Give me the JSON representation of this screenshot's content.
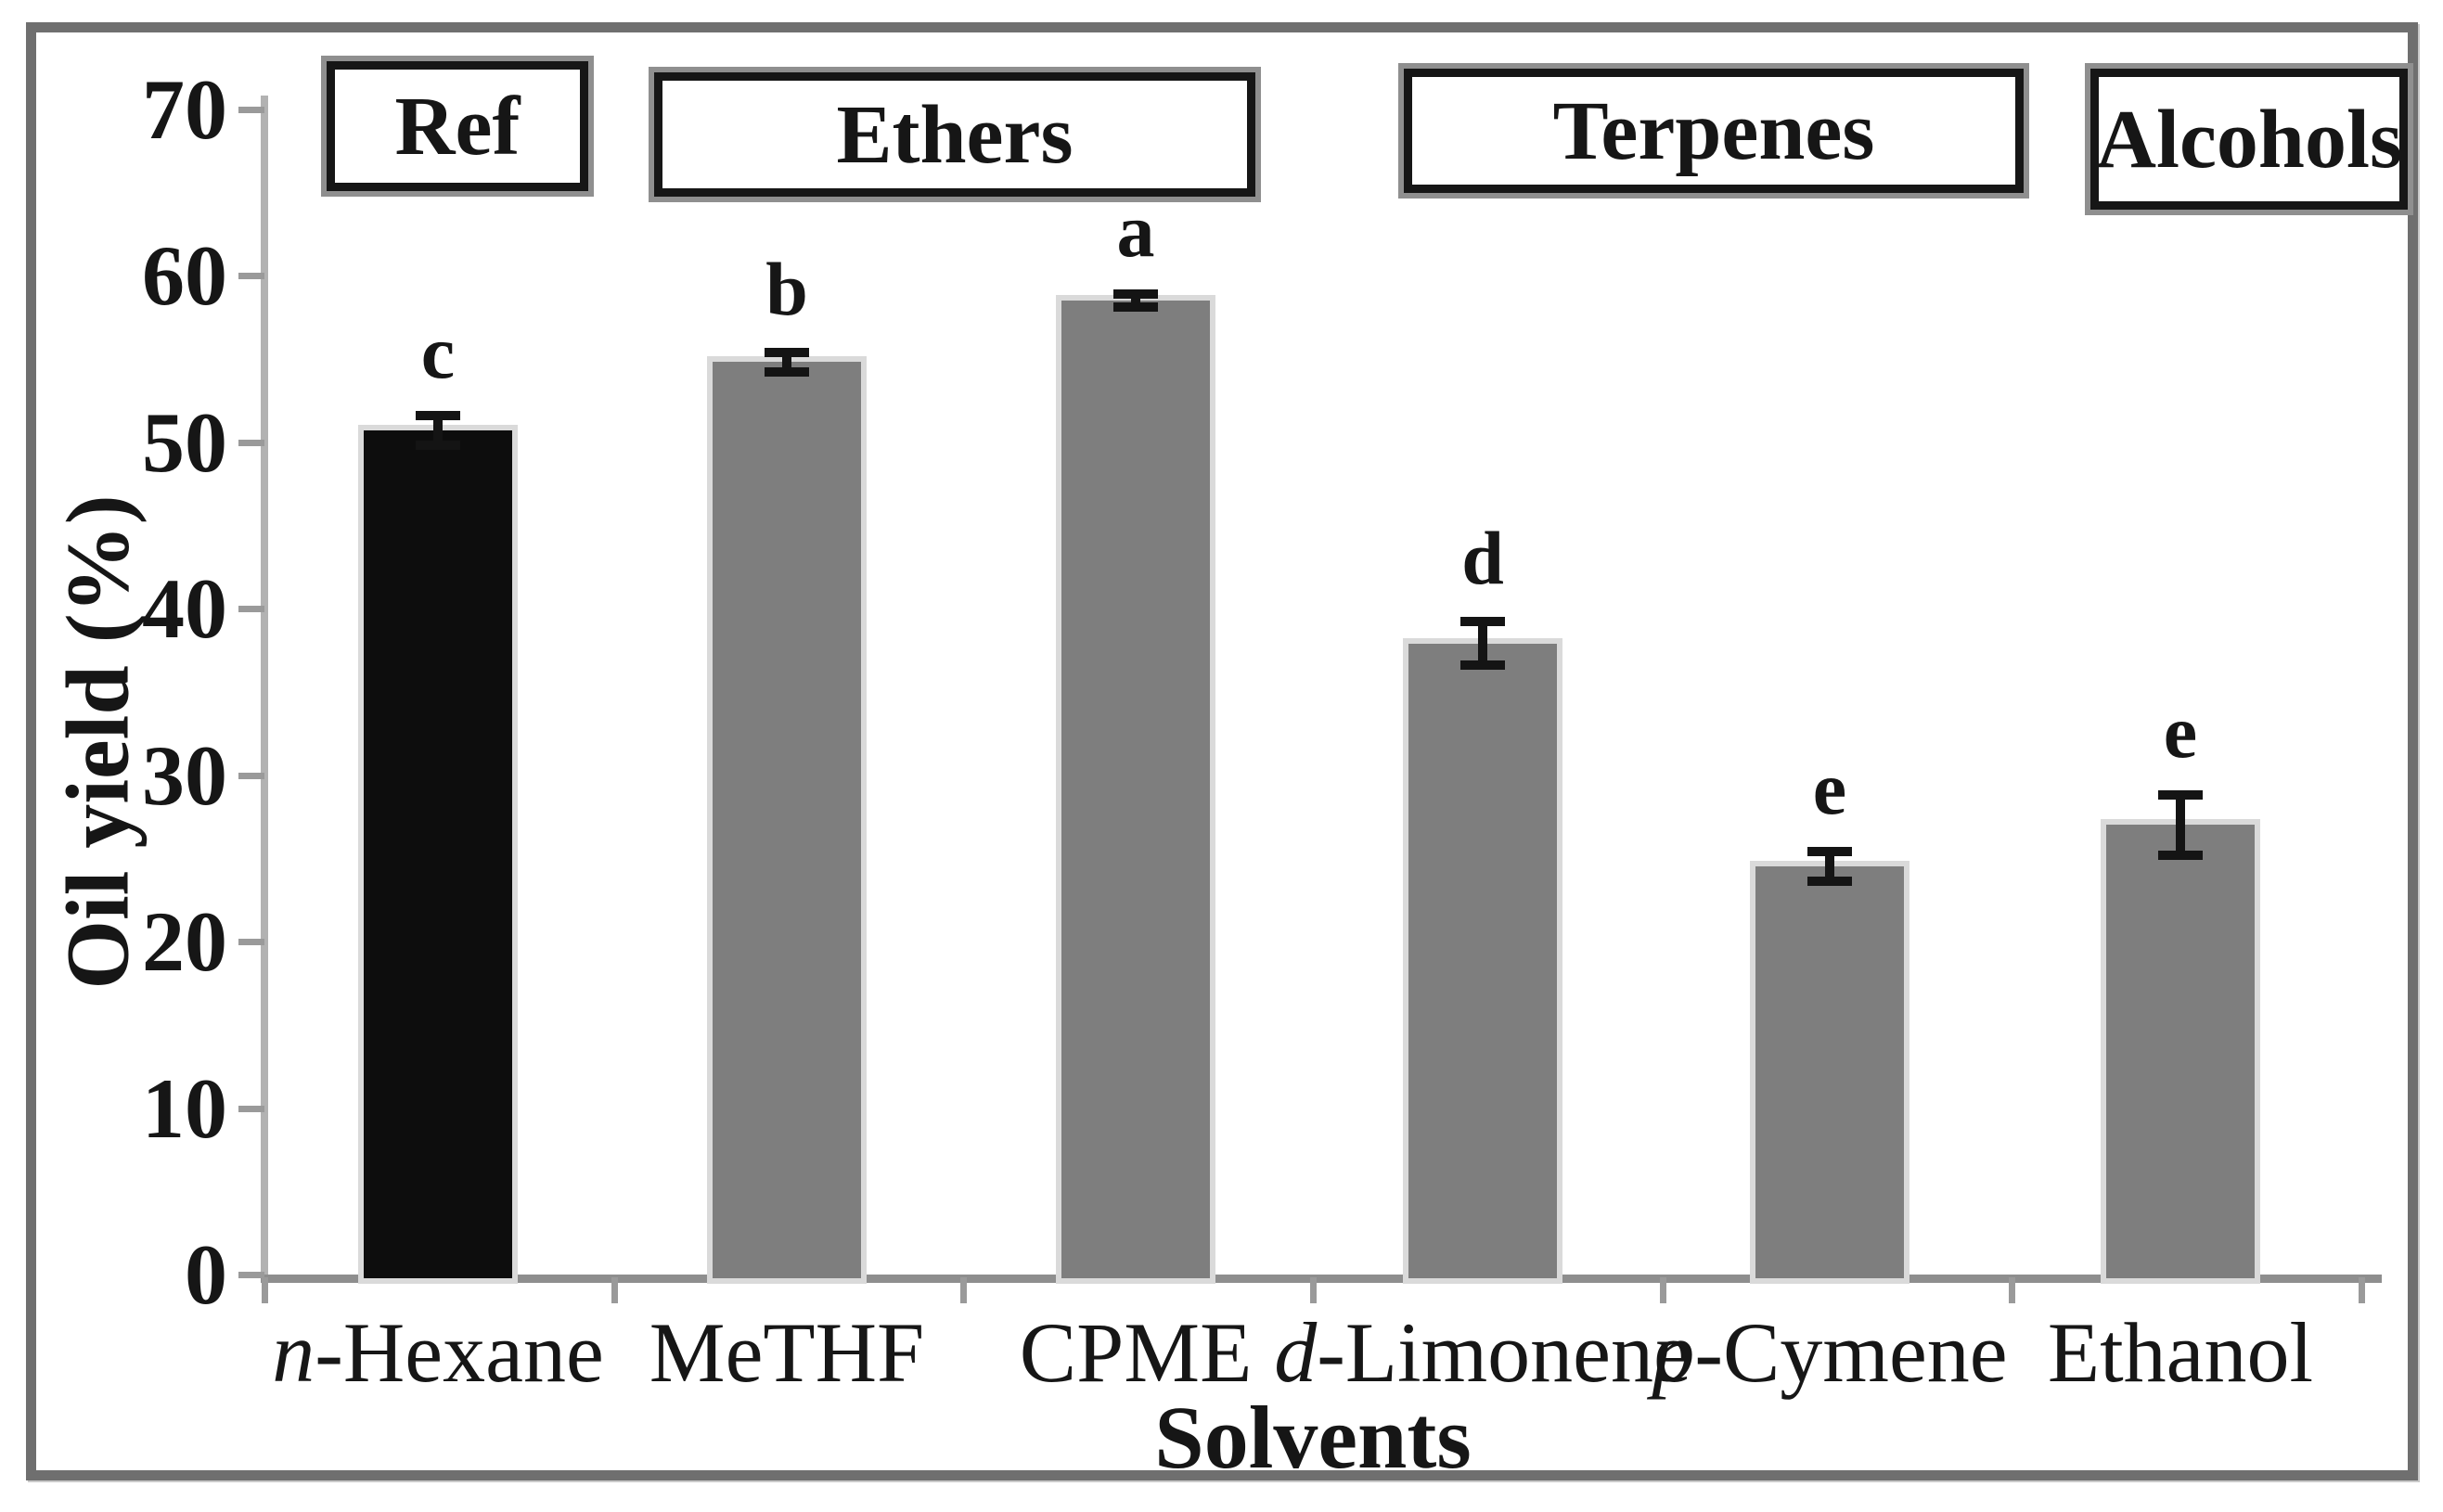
{
  "chart_data": {
    "type": "bar",
    "title": "",
    "xlabel": "Solvents",
    "ylabel": "Oil yield (%)",
    "ylim": [
      0,
      70
    ],
    "yticks": [
      0,
      10,
      20,
      30,
      40,
      50,
      60,
      70
    ],
    "grid": false,
    "legend": "none",
    "categories": [
      "n-Hexane",
      "MeTHF",
      "CPME",
      "d-Limonene",
      "p-Cymene",
      "Ethanol"
    ],
    "italic_prefix_len": [
      1,
      0,
      0,
      1,
      1,
      0
    ],
    "values": [
      50.7,
      54.8,
      58.5,
      37.9,
      24.5,
      27.0
    ],
    "errors": [
      0.9,
      0.6,
      0.4,
      1.3,
      0.9,
      1.8
    ],
    "sig_letters": [
      "c",
      "b",
      "a",
      "d",
      "e",
      "e"
    ],
    "bar_colors": [
      "#0d0d0d",
      "#7e7e7e",
      "#7e7e7e",
      "#7e7e7e",
      "#7e7e7e",
      "#7e7e7e"
    ],
    "groups": [
      {
        "label": "Ref",
        "categories": [
          "n-Hexane"
        ]
      },
      {
        "label": "Ethers",
        "categories": [
          "MeTHF",
          "CPME"
        ]
      },
      {
        "label": "Terpenes",
        "categories": [
          "d-Limonene",
          "p-Cymene"
        ]
      },
      {
        "label": "Alcohols",
        "categories": [
          "Ethanol"
        ]
      }
    ]
  }
}
